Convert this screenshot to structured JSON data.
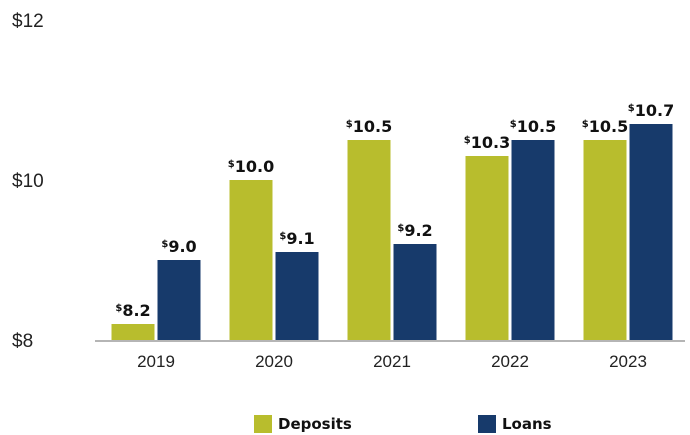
{
  "chart_data": {
    "type": "bar",
    "categories": [
      "2019",
      "2020",
      "2021",
      "2022",
      "2023"
    ],
    "series": [
      {
        "name": "Deposits",
        "values": [
          8.2,
          10.0,
          10.5,
          10.3,
          10.5
        ],
        "color": "#b8bd2d",
        "labels": [
          "8.2",
          "10.0",
          "10.5",
          "10.3",
          "10.5"
        ]
      },
      {
        "name": "Loans",
        "values": [
          9.0,
          9.1,
          9.2,
          10.5,
          10.7
        ],
        "color": "#173a6b",
        "labels": [
          "9.0",
          "9.1",
          "9.2",
          "10.5",
          "10.7"
        ]
      }
    ],
    "ylim": [
      8,
      12
    ],
    "yticks": [
      {
        "value": 8,
        "label": "$8"
      },
      {
        "value": 10,
        "label": "$10"
      },
      {
        "value": 12,
        "label": "$12"
      }
    ],
    "currency_symbol": "$",
    "title": "",
    "xlabel": "",
    "ylabel": "",
    "grid": false,
    "legend_position": "bottom"
  }
}
